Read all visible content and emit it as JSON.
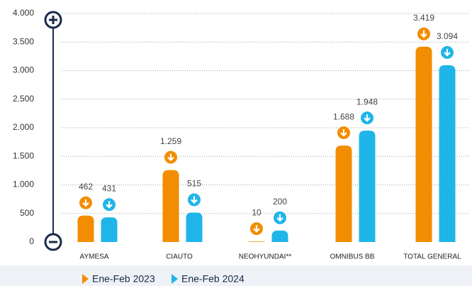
{
  "chart_data": {
    "type": "bar",
    "categories": [
      "AYMESA",
      "CIAUTO",
      "NEOHYUNDAI**",
      "OMNIBUS BB",
      "TOTAL GENERAL"
    ],
    "series": [
      {
        "name": "Ene-Feb 2023",
        "color": "#f28c00",
        "values": [
          462,
          1259,
          10,
          1688,
          3419
        ],
        "value_labels": [
          "462",
          "1.259",
          "10",
          "1.688",
          "3.419"
        ]
      },
      {
        "name": "Ene-Feb 2024",
        "color": "#1fb5e8",
        "values": [
          431,
          515,
          200,
          1948,
          3094
        ],
        "value_labels": [
          "431",
          "515",
          "200",
          "1.948",
          "3.094"
        ]
      }
    ],
    "ylim": [
      0,
      4000
    ],
    "yticks": [
      0,
      500,
      {
        "value": 1000,
        "label": "1.000"
      },
      {
        "value": 1500,
        "label": "1.500"
      },
      {
        "value": 2000,
        "label": "2.000"
      },
      {
        "value": 2500,
        "label": "2.500"
      },
      {
        "value": 3000,
        "label": "3.000"
      },
      {
        "value": 3500,
        "label": "3.500"
      },
      {
        "value": 4000,
        "label": "4.000"
      }
    ],
    "grid": true
  }
}
